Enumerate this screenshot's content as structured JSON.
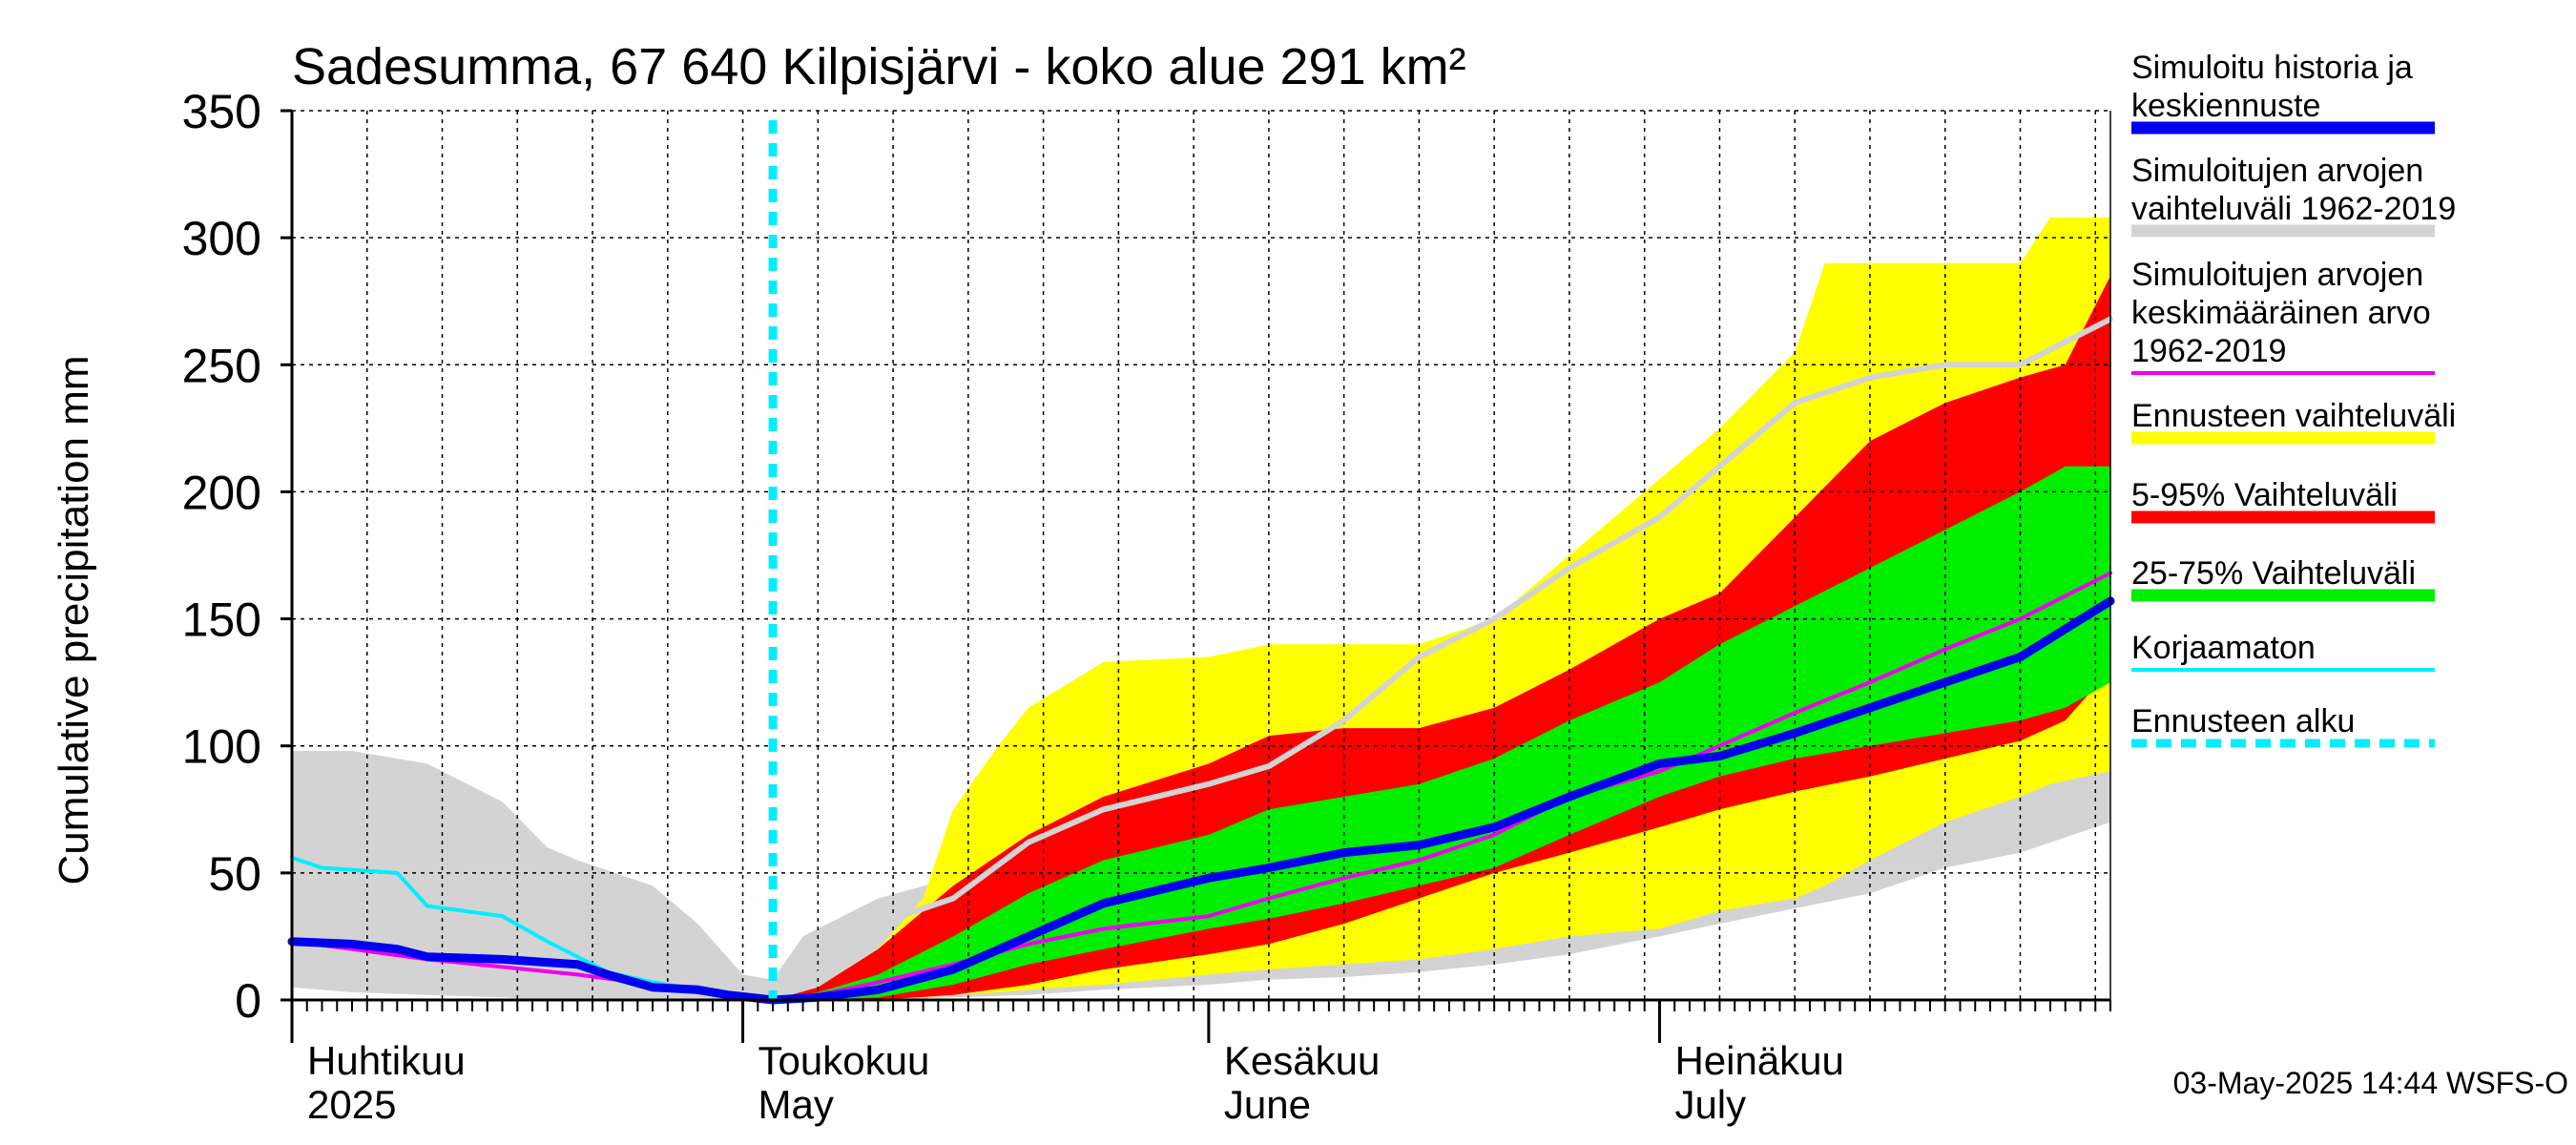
{
  "chart_data": {
    "type": "area",
    "title": "Sadesumma, 67 640 Kilpisjärvi - koko alue 291 km²",
    "ylabel": "Cumulative precipitation   mm",
    "ylim": [
      0,
      350
    ],
    "yticks": [
      "0",
      "50",
      "100",
      "150",
      "200",
      "250",
      "300",
      "350"
    ],
    "xlim": [
      "2025-04-01",
      "2025-07-31"
    ],
    "grid": true,
    "legend_position": "right",
    "month_labels": [
      {
        "fi": "Huhtikuu",
        "en": "2025",
        "date": "2025-04-01"
      },
      {
        "fi": "Toukokuu",
        "en": "May",
        "date": "2025-05-01"
      },
      {
        "fi": "Kesäkuu",
        "en": "June",
        "date": "2025-06-01"
      },
      {
        "fi": "Heinäkuu",
        "en": "July",
        "date": "2025-07-01"
      }
    ],
    "forecast_start": "2025-05-03",
    "timestamp": "03-May-2025 14:44 WSFS-O",
    "colors": {
      "history_range": "#d3d3d3",
      "forecast_range": "#ffff00",
      "p5_95": "#ff0000",
      "p25_75": "#00ee00",
      "simulated": "#0000ee",
      "mean": "#ee00ee",
      "uncorrected": "#00eeff",
      "forecast_start": "#00eeff"
    },
    "legend": [
      {
        "lines": [
          "Simuloitu historia ja",
          "keskiennuste"
        ],
        "color": "#0000ee",
        "style": "thick"
      },
      {
        "lines": [
          "Simuloitujen arvojen",
          "vaihteluväli 1962-2019"
        ],
        "color": "#d3d3d3",
        "style": "thick"
      },
      {
        "lines": [
          "Simuloitujen arvojen",
          "keskimääräinen arvo",
          "   1962-2019"
        ],
        "color": "#ee00ee",
        "style": "thin"
      },
      {
        "lines": [
          "Ennusteen vaihteluväli"
        ],
        "color": "#ffff00",
        "style": "thick"
      },
      {
        "lines": [
          "5-95% Vaihteluväli"
        ],
        "color": "#ff0000",
        "style": "thick"
      },
      {
        "lines": [
          "25-75% Vaihteluväli"
        ],
        "color": "#00ee00",
        "style": "thick"
      },
      {
        "lines": [
          "Korjaamaton"
        ],
        "color": "#00eeff",
        "style": "thin"
      },
      {
        "lines": [
          "Ennusteen alku"
        ],
        "color": "#00eeff",
        "style": "dashed"
      }
    ],
    "series": {
      "history_range": {
        "name": "Simuloitujen arvojen vaihteluväli 1962-2019",
        "x": [
          "2025-04-01",
          "2025-04-05",
          "2025-04-10",
          "2025-04-15",
          "2025-04-18",
          "2025-04-20",
          "2025-04-25",
          "2025-04-28",
          "2025-05-01",
          "2025-05-03",
          "2025-05-05",
          "2025-05-10",
          "2025-05-15",
          "2025-05-20",
          "2025-05-25",
          "2025-06-01",
          "2025-06-05",
          "2025-06-10",
          "2025-06-15",
          "2025-06-20",
          "2025-06-25",
          "2025-07-01",
          "2025-07-05",
          "2025-07-10",
          "2025-07-15",
          "2025-07-20",
          "2025-07-25",
          "2025-07-31"
        ],
        "upper": [
          98,
          98,
          93,
          78,
          60,
          55,
          45,
          30,
          10,
          8,
          25,
          40,
          48,
          58,
          65,
          80,
          85,
          92,
          105,
          130,
          150,
          180,
          190,
          205,
          225,
          240,
          250,
          268
        ],
        "lower": [
          5,
          3,
          2,
          1,
          0,
          0,
          0,
          0,
          0,
          0,
          0,
          0,
          1,
          2,
          4,
          6,
          8,
          9,
          11,
          14,
          18,
          25,
          30,
          36,
          42,
          52,
          58,
          70
        ]
      },
      "forecast_range": {
        "name": "Ennusteen vaihteluväli",
        "x": [
          "2025-05-03",
          "2025-05-06",
          "2025-05-10",
          "2025-05-13",
          "2025-05-15",
          "2025-05-18",
          "2025-05-20",
          "2025-05-25",
          "2025-06-01",
          "2025-06-05",
          "2025-06-10",
          "2025-06-15",
          "2025-06-20",
          "2025-06-25",
          "2025-07-01",
          "2025-07-05",
          "2025-07-10",
          "2025-07-12",
          "2025-07-15",
          "2025-07-20",
          "2025-07-25",
          "2025-07-27",
          "2025-07-31"
        ],
        "upper": [
          0,
          5,
          20,
          40,
          75,
          100,
          115,
          133,
          135,
          140,
          140,
          140,
          150,
          175,
          205,
          225,
          255,
          290,
          290,
          290,
          290,
          308,
          308
        ],
        "lower": [
          0,
          0,
          0,
          1,
          2,
          3,
          4,
          6,
          10,
          12,
          14,
          16,
          20,
          25,
          28,
          35,
          40,
          45,
          55,
          70,
          80,
          85,
          90
        ]
      },
      "p5_95": {
        "name": "5-95% Vaihteluväli",
        "x": [
          "2025-05-03",
          "2025-05-06",
          "2025-05-10",
          "2025-05-15",
          "2025-05-20",
          "2025-05-25",
          "2025-06-01",
          "2025-06-05",
          "2025-06-10",
          "2025-06-15",
          "2025-06-20",
          "2025-06-25",
          "2025-07-01",
          "2025-07-05",
          "2025-07-10",
          "2025-07-15",
          "2025-07-20",
          "2025-07-25",
          "2025-07-28",
          "2025-07-31"
        ],
        "upper": [
          0,
          5,
          20,
          45,
          65,
          80,
          93,
          104,
          107,
          107,
          115,
          130,
          150,
          160,
          190,
          220,
          235,
          245,
          250,
          285
        ],
        "lower": [
          0,
          0,
          0,
          2,
          6,
          12,
          18,
          22,
          30,
          40,
          50,
          58,
          68,
          75,
          82,
          88,
          95,
          102,
          110,
          130
        ]
      },
      "p25_75": {
        "name": "25-75% Vaihteluväli",
        "x": [
          "2025-05-03",
          "2025-05-06",
          "2025-05-10",
          "2025-05-15",
          "2025-05-20",
          "2025-05-25",
          "2025-06-01",
          "2025-06-05",
          "2025-06-10",
          "2025-06-15",
          "2025-06-20",
          "2025-06-25",
          "2025-07-01",
          "2025-07-05",
          "2025-07-10",
          "2025-07-15",
          "2025-07-20",
          "2025-07-25",
          "2025-07-28",
          "2025-07-31"
        ],
        "upper": [
          0,
          3,
          10,
          25,
          42,
          55,
          65,
          75,
          80,
          85,
          95,
          110,
          125,
          140,
          155,
          170,
          185,
          200,
          210,
          210
        ],
        "lower": [
          0,
          0,
          1,
          6,
          14,
          20,
          28,
          32,
          38,
          45,
          52,
          65,
          80,
          88,
          95,
          100,
          105,
          110,
          115,
          125
        ]
      },
      "simulated": {
        "name": "Simuloitu historia ja keskiennuste",
        "x": [
          "2025-04-01",
          "2025-04-05",
          "2025-04-08",
          "2025-04-10",
          "2025-04-15",
          "2025-04-20",
          "2025-04-22",
          "2025-04-25",
          "2025-04-28",
          "2025-04-30",
          "2025-05-03",
          "2025-05-06",
          "2025-05-10",
          "2025-05-15",
          "2025-05-20",
          "2025-05-25",
          "2025-06-01",
          "2025-06-05",
          "2025-06-10",
          "2025-06-15",
          "2025-06-20",
          "2025-06-25",
          "2025-07-01",
          "2025-07-05",
          "2025-07-10",
          "2025-07-15",
          "2025-07-20",
          "2025-07-25",
          "2025-07-31"
        ],
        "y": [
          23,
          22,
          20,
          17,
          16,
          14,
          10,
          5,
          4,
          2,
          0,
          1,
          4,
          12,
          25,
          38,
          48,
          52,
          58,
          61,
          68,
          80,
          93,
          96,
          105,
          115,
          125,
          135,
          157
        ]
      },
      "mean": {
        "name": "Simuloitujen arvojen keskimääräinen arvo 1962-2019",
        "x": [
          "2025-04-01",
          "2025-04-05",
          "2025-04-10",
          "2025-04-15",
          "2025-04-20",
          "2025-04-25",
          "2025-04-28",
          "2025-05-01",
          "2025-05-03",
          "2025-05-06",
          "2025-05-10",
          "2025-05-15",
          "2025-05-20",
          "2025-05-25",
          "2025-06-01",
          "2025-06-05",
          "2025-06-10",
          "2025-06-15",
          "2025-06-20",
          "2025-06-25",
          "2025-07-01",
          "2025-07-05",
          "2025-07-10",
          "2025-07-15",
          "2025-07-20",
          "2025-07-25",
          "2025-07-31"
        ],
        "y": [
          23,
          20,
          16,
          13,
          10,
          6,
          3,
          1,
          0,
          2,
          7,
          14,
          22,
          28,
          33,
          40,
          48,
          55,
          65,
          80,
          90,
          100,
          113,
          125,
          138,
          150,
          168
        ]
      },
      "uncorrected": {
        "name": "Korjaamaton",
        "x": [
          "2025-04-01",
          "2025-04-03",
          "2025-04-08",
          "2025-04-10",
          "2025-04-15",
          "2025-04-18",
          "2025-04-22",
          "2025-04-25",
          "2025-04-28",
          "2025-05-01",
          "2025-05-03"
        ],
        "y": [
          56,
          52,
          50,
          37,
          33,
          23,
          11,
          7,
          4,
          1,
          0
        ]
      },
      "history_gray_line": {
        "name": "Simuloitujen arvojen vaihteluväli 1962-2019 (line)",
        "x": [
          "2025-05-03",
          "2025-05-06",
          "2025-05-10",
          "2025-05-15",
          "2025-05-20",
          "2025-05-25",
          "2025-06-01",
          "2025-06-05",
          "2025-06-10",
          "2025-06-15",
          "2025-06-20",
          "2025-06-25",
          "2025-07-01",
          "2025-07-05",
          "2025-07-10",
          "2025-07-15",
          "2025-07-20",
          "2025-07-25",
          "2025-07-31"
        ],
        "y": [
          0,
          10,
          30,
          40,
          62,
          75,
          85,
          92,
          110,
          135,
          150,
          170,
          190,
          210,
          235,
          245,
          250,
          250,
          268
        ]
      }
    }
  }
}
